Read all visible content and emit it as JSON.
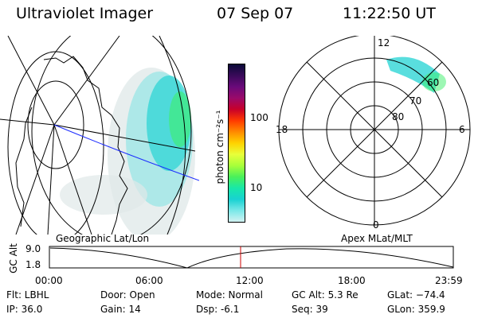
{
  "header": {
    "title": "Ultraviolet Imager",
    "date": "07 Sep 07",
    "time": "11:22:50 UT"
  },
  "colorbar": {
    "label": "photon cm⁻²s⁻¹",
    "ticks": [
      "100",
      "10"
    ],
    "colors": [
      "#0a0a38",
      "#3a0a5a",
      "#6a0a7a",
      "#9a0a6a",
      "#c8002a",
      "#ff3a00",
      "#ff8a00",
      "#ffd200",
      "#e8ff3a",
      "#a8ff3a",
      "#4af05a",
      "#18e8a8",
      "#18d2d2",
      "#7ae8e8",
      "#d2f2f2"
    ]
  },
  "geo_panel": {
    "label": "Geographic Lat/Lon"
  },
  "polar_panel": {
    "label": "Apex MLat/MLT",
    "hour_labels": {
      "top": "12",
      "left": "18",
      "right": "6",
      "bottom": "0"
    },
    "lat_labels": [
      "60",
      "70",
      "80"
    ]
  },
  "orbit_plot": {
    "ylabel": "GC Alt",
    "yticks": [
      "9.0",
      "1.8"
    ],
    "xticks": [
      "00:00",
      "06:00",
      "12:00",
      "18:00",
      "23:59"
    ],
    "marker_color": "#cc0000"
  },
  "info": {
    "flt": "Flt: LBHL",
    "ip": "IP: 36.0",
    "door": "Door: Open",
    "gain": "Gain: 14",
    "mode": "Mode: Normal",
    "dsp": "Dsp:    -6.1",
    "gcalt": "GC Alt: 5.3 Re",
    "seq": "Seq: 39",
    "glat": "GLat: −74.4",
    "glon": "GLon: 359.9"
  }
}
